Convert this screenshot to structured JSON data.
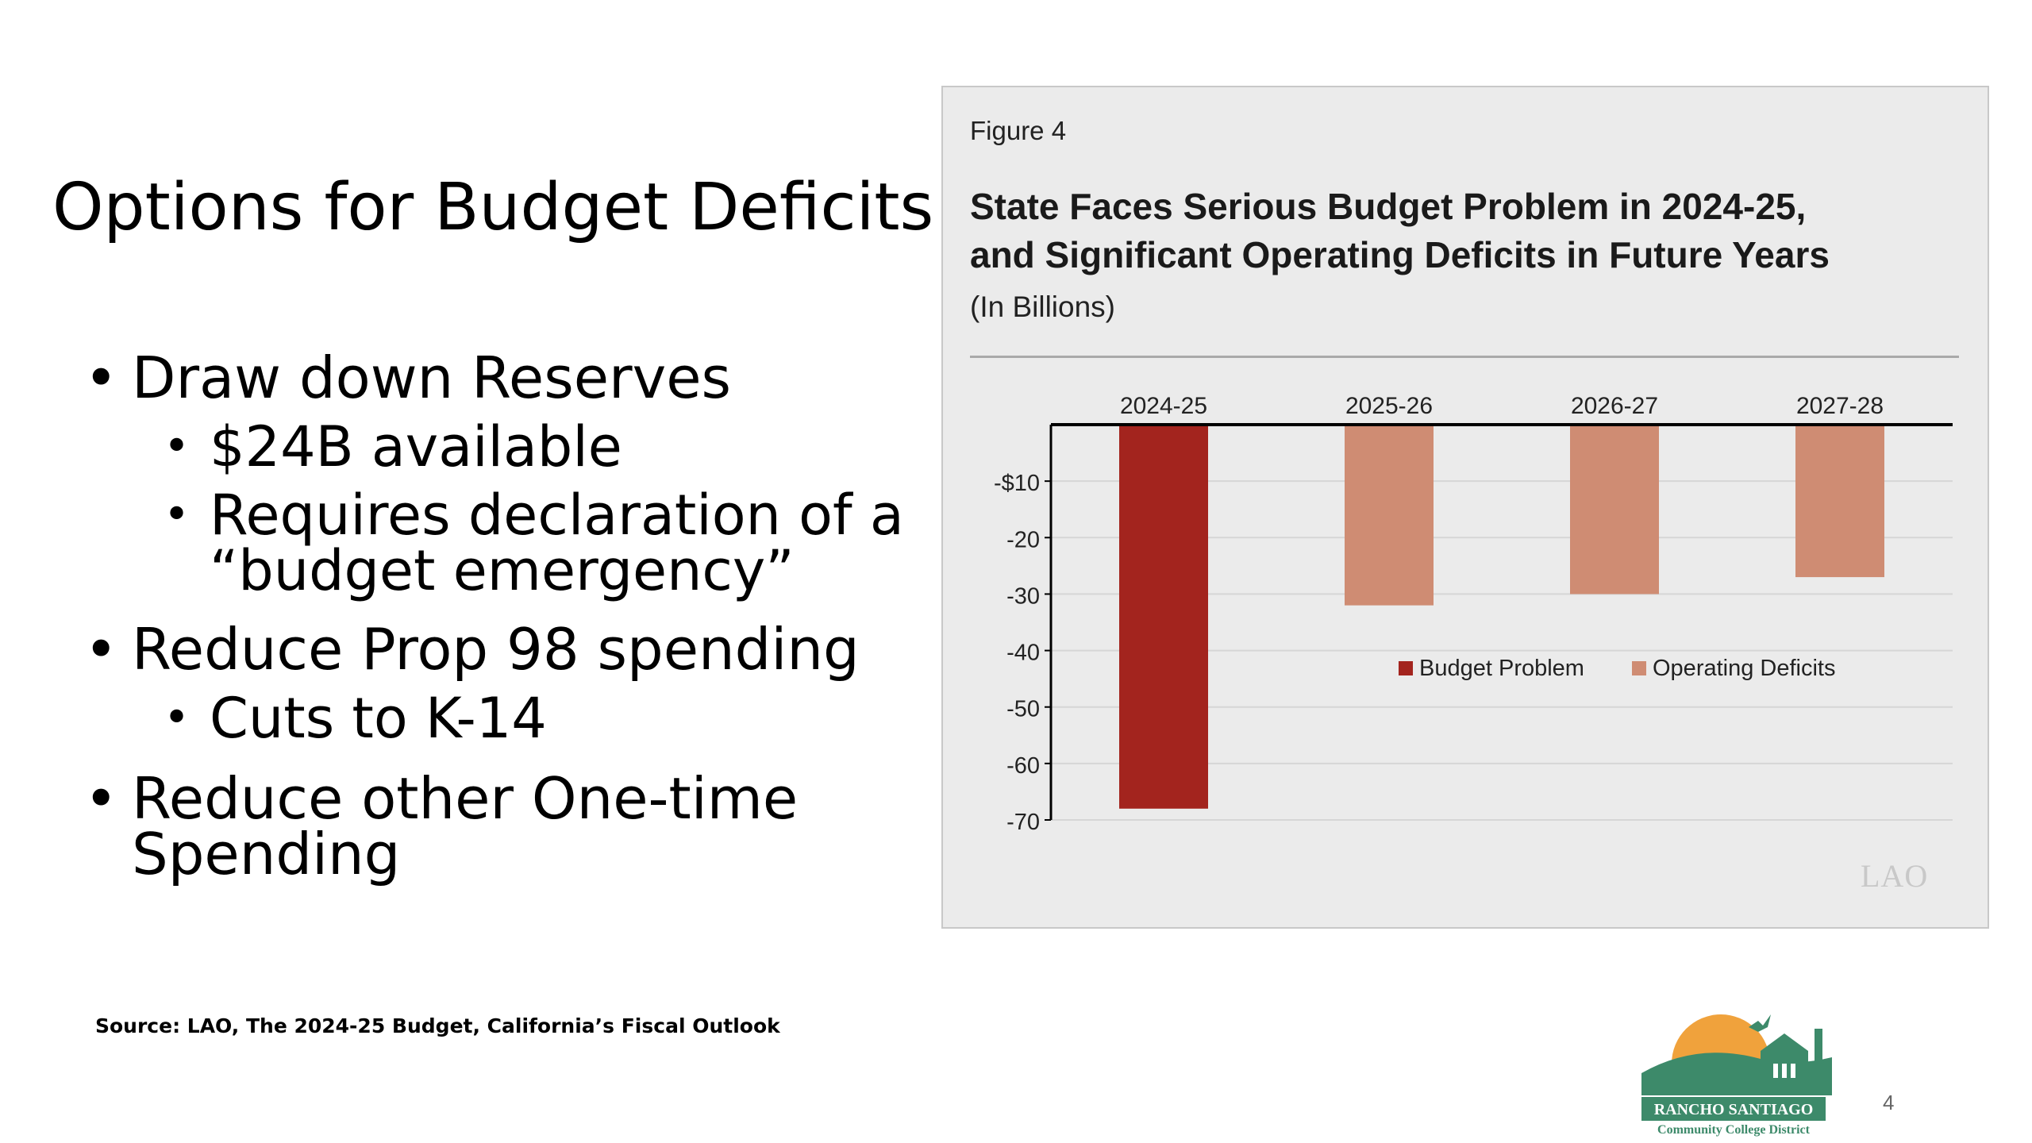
{
  "slide": {
    "title": "Options for Budget Deficits",
    "bullets": [
      {
        "text": "Draw down Reserves",
        "level": 1
      },
      {
        "text": "$24B available",
        "level": 2
      },
      {
        "text": "Requires declaration of a",
        "level": 2
      },
      {
        "text": "“budget emergency”",
        "level": 2
      },
      {
        "text": "Reduce Prop 98 spending",
        "level": 1
      },
      {
        "text": "Cuts to K-14",
        "level": 2
      },
      {
        "text": "Reduce other One-time",
        "level": 1
      },
      {
        "text": "Spending",
        "level": 1
      }
    ],
    "bullet_glyph": "•",
    "source": "Source: LAO, The 2024-25 Budget, California’s Fiscal Outlook",
    "page_number": "4"
  },
  "figure": {
    "label": "Figure 4",
    "title_line1": "State Faces Serious Budget Problem in 2024-25,",
    "title_line2": "and Significant Operating Deficits in Future Years",
    "subtitle": "(In Billions)",
    "watermark": "LAO"
  },
  "logo": {
    "line1": "RANCHO SANTIAGO",
    "line2": "Community College District"
  },
  "colors": {
    "budget_problem": "#a3241e",
    "operating_deficits": "#cf8c73",
    "logo_green": "#3d8a6a",
    "logo_sun": "#f0a23c"
  },
  "chart_data": {
    "type": "bar",
    "categories": [
      "2024-25",
      "2025-26",
      "2026-27",
      "2027-28"
    ],
    "series": [
      {
        "name": "Budget Problem",
        "values": [
          -68,
          null,
          null,
          null
        ]
      },
      {
        "name": "Operating Deficits",
        "values": [
          null,
          -32,
          -30,
          -27
        ]
      }
    ],
    "yticks": [
      "-$10",
      "-20",
      "-30",
      "-40",
      "-50",
      "-60",
      "-70"
    ],
    "ytick_values": [
      -10,
      -20,
      -30,
      -40,
      -50,
      -60,
      -70
    ],
    "ylim": [
      -70,
      0
    ],
    "grid": true,
    "legend": "center-right"
  }
}
